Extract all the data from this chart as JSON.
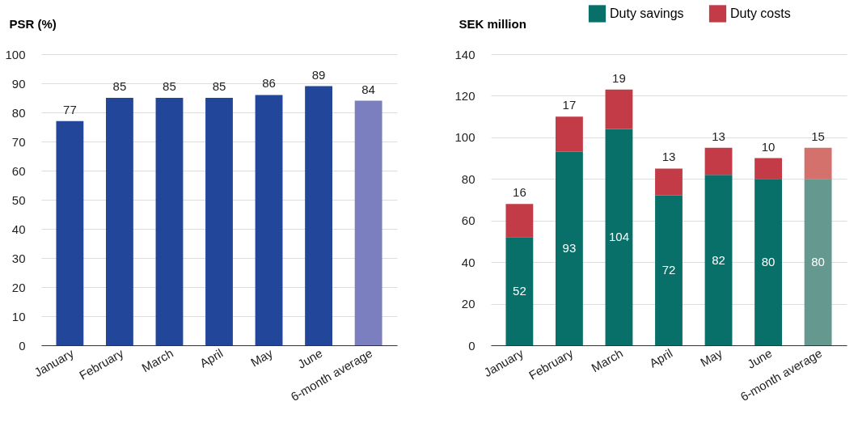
{
  "chart_data": [
    {
      "type": "bar",
      "ylabel": "PSR (%)",
      "categories": [
        "January",
        "February",
        "March",
        "April",
        "May",
        "June",
        "6-month average"
      ],
      "values": [
        77,
        85,
        85,
        85,
        86,
        89,
        84
      ],
      "colors": [
        "#22479a",
        "#22479a",
        "#22479a",
        "#22479a",
        "#22479a",
        "#22479a",
        "#7b7fbf"
      ],
      "ylim": [
        0,
        100
      ],
      "yticks": [
        0,
        10,
        20,
        30,
        40,
        50,
        60,
        70,
        80,
        90,
        100
      ],
      "grid": "y",
      "data_labels": true,
      "legend": false
    },
    {
      "type": "bar",
      "stacked": true,
      "ylabel": "SEK million",
      "categories": [
        "January",
        "February",
        "March",
        "April",
        "May",
        "June",
        "6-month average"
      ],
      "series": [
        {
          "name": "Duty savings",
          "color": "#087068",
          "colors": [
            "#087068",
            "#087068",
            "#087068",
            "#087068",
            "#087068",
            "#087068",
            "#65998f"
          ],
          "values": [
            52,
            93,
            104,
            72,
            82,
            80,
            80
          ]
        },
        {
          "name": "Duty costs",
          "color": "#c23b47",
          "colors": [
            "#c23b47",
            "#c23b47",
            "#c23b47",
            "#c23b47",
            "#c23b47",
            "#c23b47",
            "#d4716c"
          ],
          "values": [
            16,
            17,
            19,
            13,
            13,
            10,
            15
          ]
        }
      ],
      "ylim": [
        0,
        140
      ],
      "yticks": [
        0,
        20,
        40,
        60,
        80,
        100,
        120,
        140
      ],
      "grid": "y",
      "data_labels": true,
      "legend": "top right"
    }
  ]
}
